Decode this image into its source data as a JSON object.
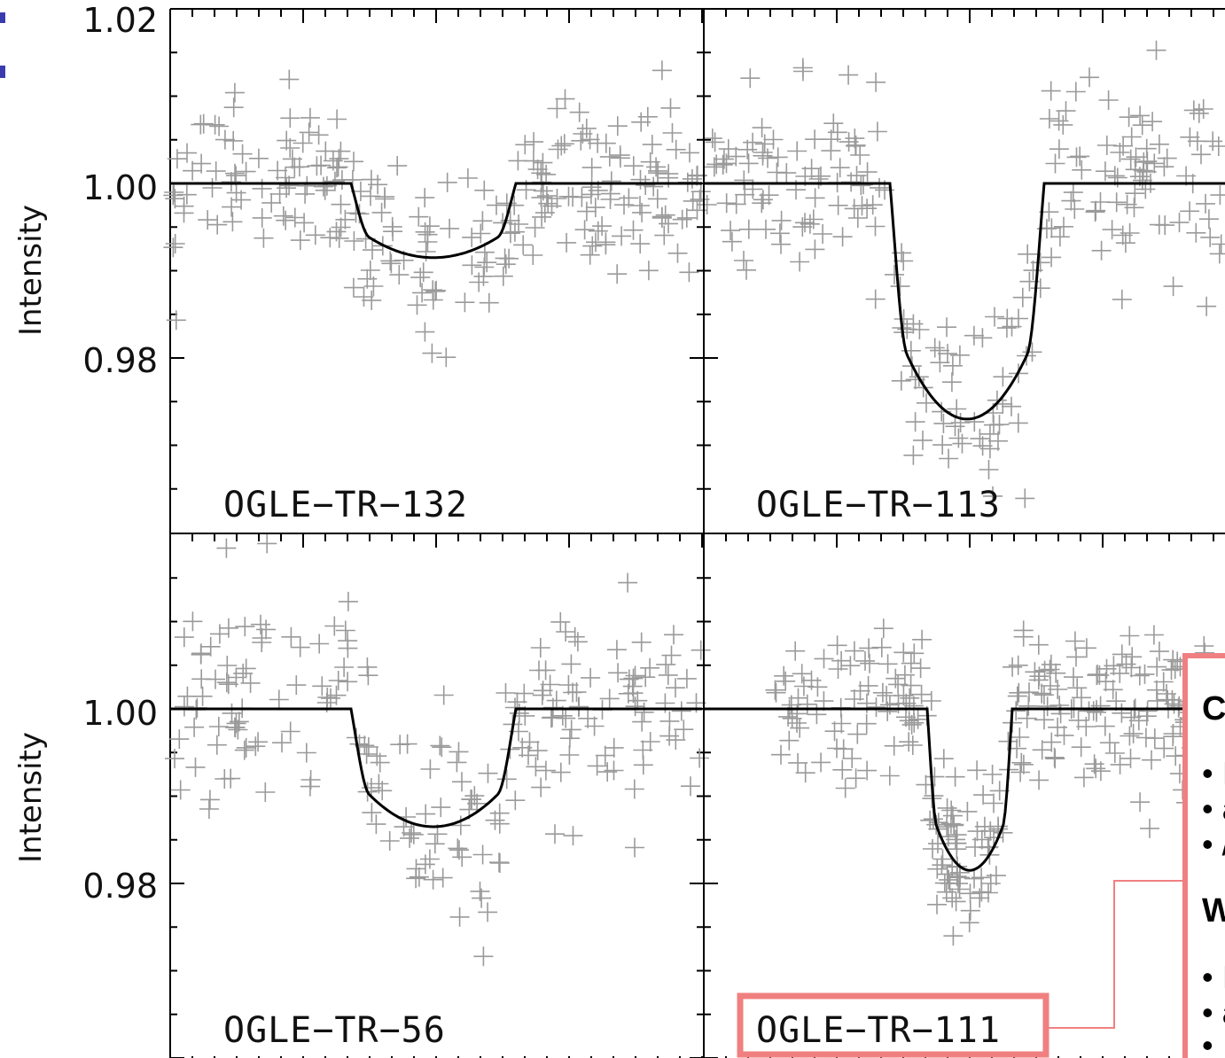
{
  "chart_data": {
    "type": "scatter",
    "layout": "2x2 panels",
    "ylabel": "Intensity",
    "yticks": {
      "top_row": [
        "1.02",
        "1.00",
        "0.98"
      ],
      "bottom_row": [
        "1.00",
        "0.98"
      ]
    },
    "ylim": [
      0.96,
      1.02
    ],
    "grid": false,
    "panels": [
      {
        "label": "OGLE−TR−132",
        "row": 0,
        "col": 0,
        "baseline": 1.0,
        "depth": 0.0085,
        "ingress": [
          0.34,
          0.65
        ],
        "noise": 0.0045,
        "npoints": 260,
        "highlighted": false
      },
      {
        "label": "OGLE−TR−113",
        "row": 0,
        "col": 1,
        "baseline": 1.0,
        "depth": 0.027,
        "ingress": [
          0.35,
          0.64
        ],
        "noise": 0.0055,
        "npoints": 250,
        "highlighted": false
      },
      {
        "label": "OGLE−TR−56",
        "row": 1,
        "col": 0,
        "baseline": 1.0,
        "depth": 0.0135,
        "ingress": [
          0.34,
          0.65
        ],
        "noise": 0.006,
        "npoints": 230,
        "highlighted": false
      },
      {
        "label": "OGLE−TR−111",
        "row": 1,
        "col": 1,
        "baseline": 1.0,
        "depth": 0.0185,
        "ingress": [
          0.42,
          0.58
        ],
        "noise": 0.0048,
        "npoints": 320,
        "highlighted": true
      }
    ],
    "series": [
      {
        "name": "",
        "style": "gray plus markers"
      },
      {
        "name": "",
        "style": "black solid line"
      }
    ],
    "colors": {
      "points": "#9a9a9a",
      "model": "#000000",
      "highlight": "#f08080",
      "corner_mark": "#3b3bb0"
    }
  },
  "overlay": {
    "heading_visible": "C",
    "bullets_group_1": [
      "• I",
      "• a",
      "• /"
    ],
    "heading_2_visible": "W",
    "bullets_group_2": [
      "• I",
      "• a",
      "•"
    ]
  }
}
